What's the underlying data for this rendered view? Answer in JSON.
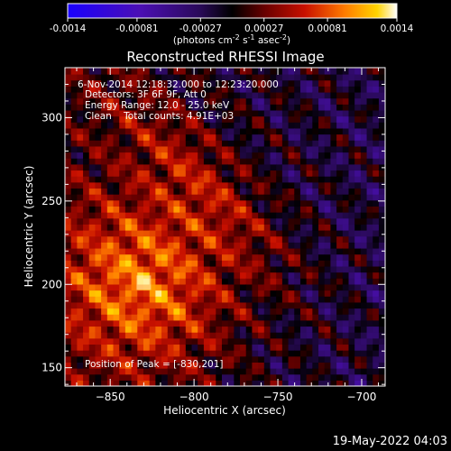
{
  "colorbar": {
    "tick_labels": [
      "-0.0014",
      "-0.00081",
      "-0.00027",
      "0.00027",
      "0.00081",
      "0.0014"
    ],
    "tick_values": [
      -0.0014,
      -0.00081,
      -0.00027,
      0.00027,
      0.00081,
      0.0014
    ],
    "range": [
      -0.0014,
      0.0014
    ],
    "units_main": "(photons cm",
    "units_sup1": "-2",
    "units_mid": " s",
    "units_sup2": "-1",
    "units_end": " asec",
    "units_sup3": "-2",
    "units_close": ")"
  },
  "overlay": {
    "line1": "6-Nov-2014 12:18:32.000 to 12:23:20.000",
    "line2": "Detectors: 3F 6F 9F, Att 0",
    "line3": "Energy Range: 12.0 - 25.0 keV",
    "line4": "Clean    Total counts: 4.91E+03",
    "peak": "Position of Peak = [-830,201]"
  },
  "footer": {
    "date": "19-May-2022 04:03"
  },
  "chart_data": {
    "type": "heatmap",
    "title": "Reconstructed RHESSI Image",
    "xlabel": "Heliocentric X (arcsec)",
    "ylabel": "Heliocentric Y (arcsec)",
    "xlim": [
      -877,
      -686
    ],
    "ylim": [
      139,
      330
    ],
    "x_ticks": [
      -850,
      -800,
      -750,
      -700
    ],
    "y_ticks": [
      150,
      200,
      250,
      300
    ],
    "x_tick_labels": [
      "−850",
      "−800",
      "−750",
      "−700"
    ],
    "y_tick_labels": [
      "150",
      "200",
      "250",
      "300"
    ],
    "peak_position": [
      -830,
      201
    ],
    "colormap": [
      "#1a00ff",
      "#4b0fb4",
      "#2a0a5a",
      "#000000",
      "#6a0000",
      "#c81000",
      "#ff7a00",
      "#ffd400",
      "#ffffff"
    ]
  }
}
